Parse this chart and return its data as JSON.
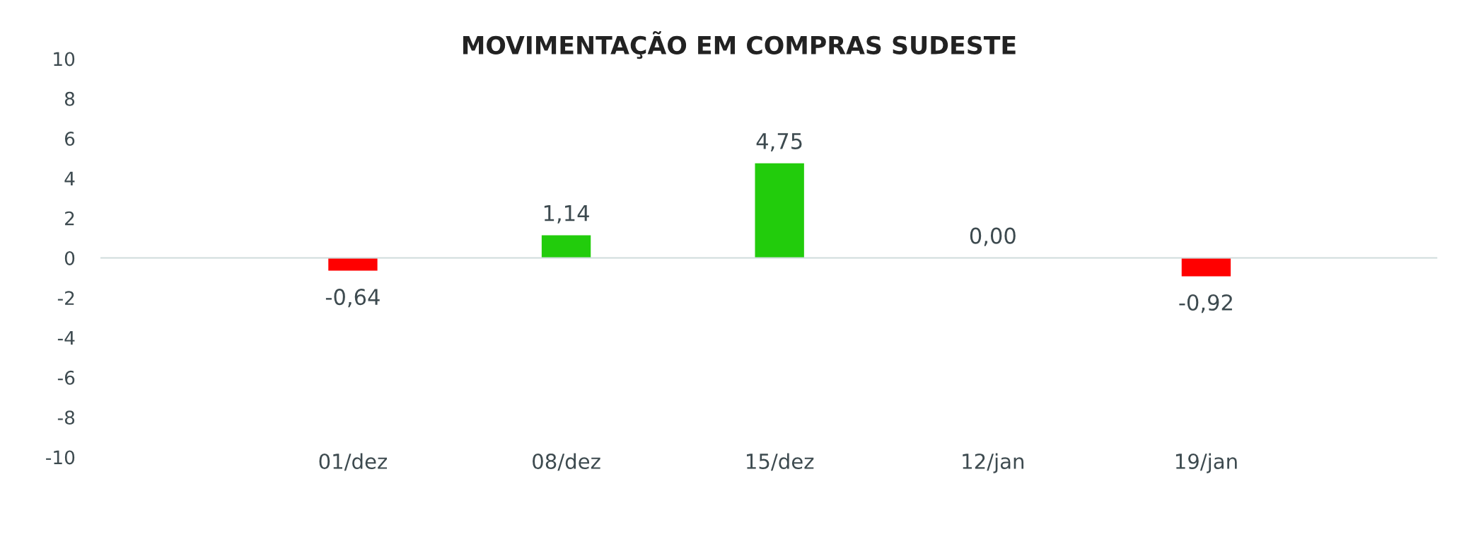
{
  "chart_data": {
    "type": "bar",
    "title": "MOVIMENTAÇÃO EM COMPRAS SUDESTE",
    "categories": [
      "01/dez",
      "08/dez",
      "15/dez",
      "12/jan",
      "19/jan"
    ],
    "values": [
      -0.64,
      1.14,
      4.75,
      0.0,
      -0.92
    ],
    "colors": [
      "#ff0000",
      "#22cc0c",
      "#22cc0c",
      "#22cc0c",
      "#ff0000"
    ],
    "value_labels": [
      "-0,64",
      "1,14",
      "4,75",
      "0,00",
      "-0,92"
    ],
    "ylim": [
      -10,
      10
    ],
    "yticks": [
      -10,
      -8,
      -6,
      -4,
      -2,
      0,
      2,
      4,
      6,
      8,
      10
    ]
  }
}
